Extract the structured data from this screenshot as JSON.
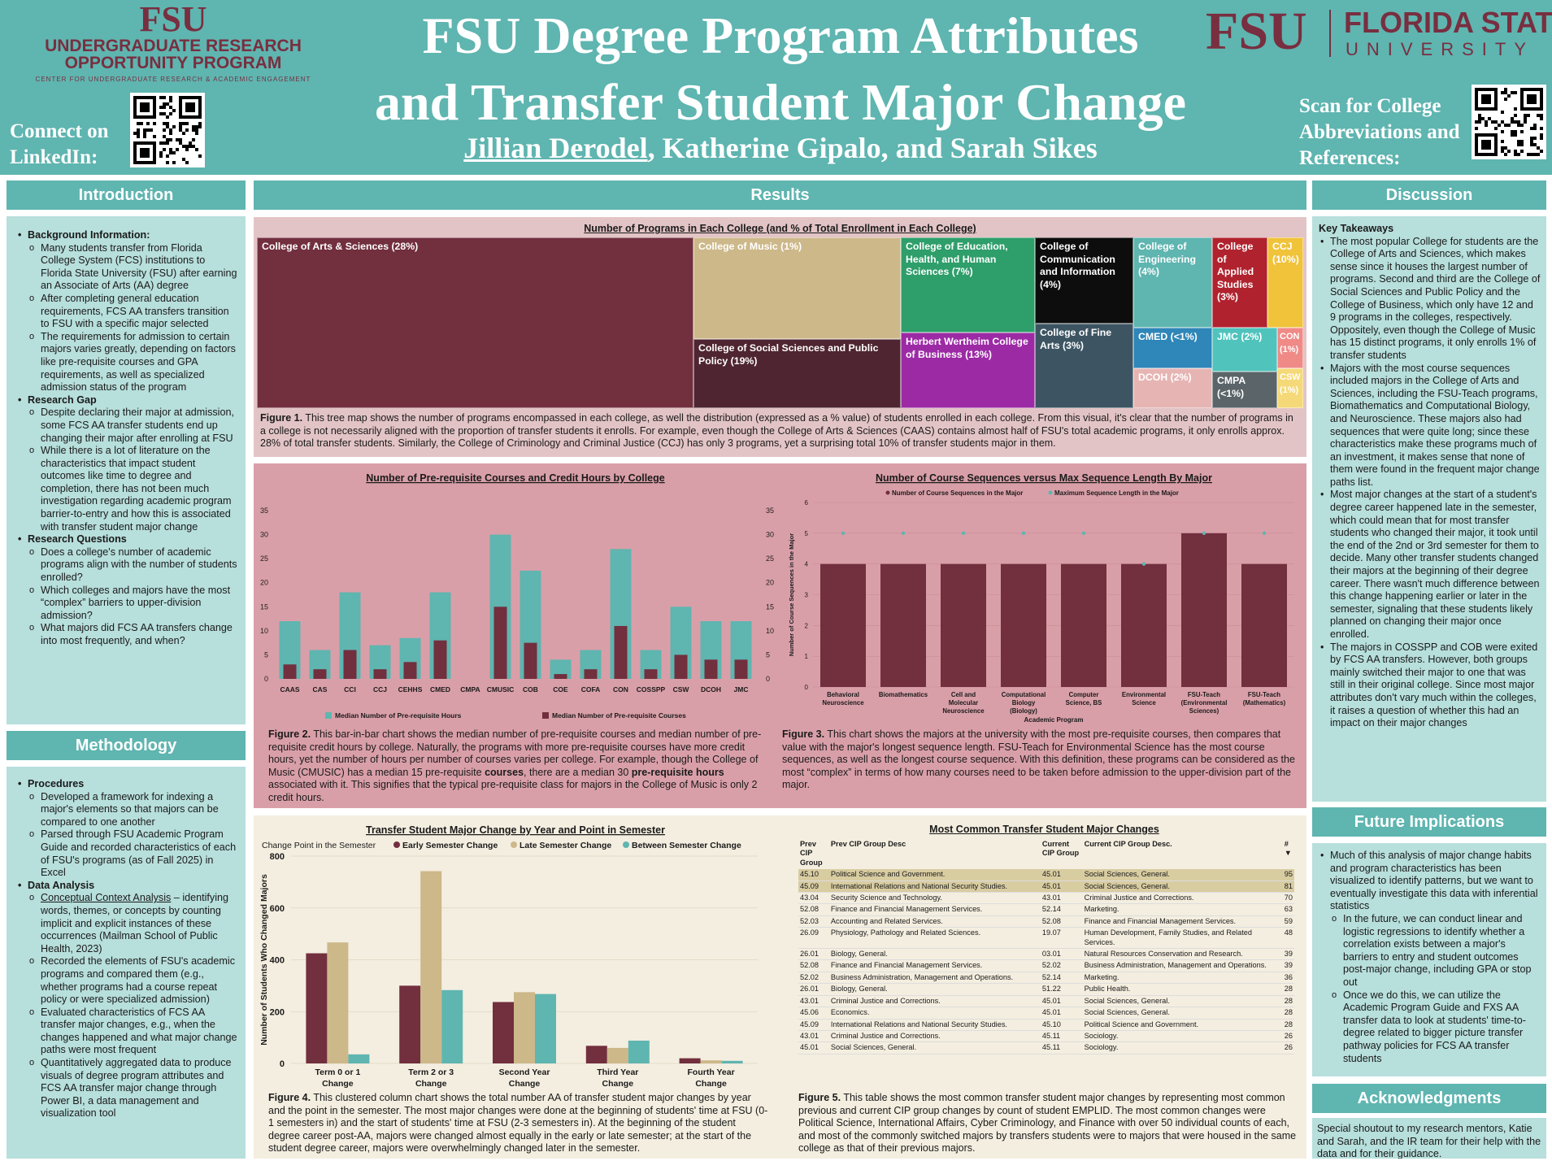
{
  "header": {
    "urop_mark": "FSU",
    "urop_name_1": "UNDERGRADUATE RESEARCH",
    "urop_name_2": "OPPORTUNITY PROGRAM",
    "urop_sub": "CENTER FOR UNDERGRADUATE RESEARCH & ACADEMIC ENGAGEMENT",
    "title_1": "FSU Degree Program Attributes",
    "title_2": "and Transfer Student Major Change",
    "author_1": "Jillian Derodel",
    "author_rest": ", Katherine Gipalo, and Sarah Sikes",
    "fsu_mark": "FSU",
    "fsu_name": "FLORIDA STATE",
    "fsu_univ": "UNIVERSITY",
    "connect": "Connect on LinkedIn:",
    "scan": "Scan for College Abbreviations and References:"
  },
  "sections": {
    "introduction": "Introduction",
    "methodology": "Methodology",
    "results": "Results",
    "discussion": "Discussion",
    "future": "Future Implications",
    "ack": "Acknowledgments"
  },
  "intro": {
    "bg_head": "Background Information:",
    "bg": [
      "Many students transfer from Florida College System (FCS) institutions to Florida State University (FSU) after earning an Associate of Arts (AA) degree",
      "After completing general education requirements, FCS AA transfers transition to FSU with a specific major selected",
      "The requirements for admission to certain majors varies greatly, depending on factors like pre-requisite courses and GPA requirements, as well as specialized admission status of the program"
    ],
    "gap_head": "Research Gap",
    "gap": [
      "Despite declaring their major at admission, some FCS AA transfer students end up changing their major after enrolling at FSU",
      "While there is a lot of literature on the characteristics that impact student outcomes like time to degree and completion, there has not been much investigation regarding academic program barrier-to-entry and how this is associated with transfer student major change"
    ],
    "rq_head": "Research Questions",
    "rq": [
      "Does a college's number of academic programs align with the number of students enrolled?",
      "Which colleges and majors have the most “complex” barriers to upper-division admission?",
      "What majors did FCS AA transfers change into most frequently, and when?"
    ]
  },
  "method": {
    "proc_head": "Procedures",
    "proc": [
      "Developed a framework for indexing a major's elements so that majors can be compared to one another",
      "Parsed through FSU Academic Program Guide and recorded characteristics of each of FSU's programs (as of Fall 2025) in Excel"
    ],
    "da_head": "Data Analysis",
    "cca_term": "Conceptual Context Analysis",
    "cca_rest": " – identifying words, themes, or concepts by counting implicit and explicit instances of these occurrences (Mailman School of Public Health, 2023)",
    "da": [
      "Recorded the elements of FSU's academic programs and compared them (e.g., whether programs had a course repeat policy or were specialized admission)",
      "Evaluated characteristics of FCS AA transfer major changes, e.g., when the changes happened and what major change paths were most frequent",
      "Quantitatively aggregated data to produce visuals of degree program attributes and FCS AA transfer major change through Power BI, a data management and visualization tool"
    ]
  },
  "fig1": {
    "title": "Number of Programs in Each College (and % of Total Enrollment in Each College)",
    "cells": [
      {
        "label": "College of Arts & Sciences (28%)",
        "color": "#722f3e"
      },
      {
        "label": "College of Music (1%)",
        "color": "#cdb88a"
      },
      {
        "label": "College of Social Sciences and Public Policy (19%)",
        "color": "#4e2530"
      },
      {
        "label": "College of Education, Health, and Human Sciences (7%)",
        "color": "#2e9e6a"
      },
      {
        "label": "Herbert Wertheim College of Business (13%)",
        "color": "#9c2aa5"
      },
      {
        "label": "College of Communication and Information (4%)",
        "color": "#0d0d0d"
      },
      {
        "label": "College of Fine Arts (3%)",
        "color": "#3d5563"
      },
      {
        "label": "College of Engineering (4%)",
        "color": "#5fb5b0"
      },
      {
        "label": "College of Applied Studies (3%)",
        "color": "#b0232e"
      },
      {
        "label": "CCJ (10%)",
        "color": "#f0c33a"
      },
      {
        "label": "CMED (<1%)",
        "color": "#2f86b8"
      },
      {
        "label": "JMC (2%)",
        "color": "#4fc3bc"
      },
      {
        "label": "CON (1%)",
        "color": "#ef8a87"
      },
      {
        "label": "DCOH (2%)",
        "color": "#e6b5b3"
      },
      {
        "label": "CMPA (<1%)",
        "color": "#5a6469"
      },
      {
        "label": "CSW (1%)",
        "color": "#f5d978"
      }
    ],
    "caption_lead": "Figure 1.",
    "caption": " This tree map shows the number of programs encompassed in each college, as well the distribution (expressed as a % value) of students enrolled in each college. From this visual, it's clear that the number of programs in a college is not necessarily aligned with the proportion of transfer students it enrolls. For example, even though the College of Arts & Sciences (CAAS) contains almost half of FSU's total academic programs, it only enrolls approx. 28% of total transfer students. Similarly, the College of Criminology and Criminal Justice (CCJ) has only 3 programs, yet a surprising total 10% of transfer students major in them."
  },
  "fig2": {
    "caption_lead": "Figure 2.",
    "caption_a": " This bar-in-bar chart shows the median number of pre-requisite courses and median number of pre-requisite credit hours by college. Naturally, the programs with more pre-requisite courses have more credit hours, yet the number of hours per number of courses varies per college. For example, though the College of Music (CMUSIC) has a median 15 pre-requisite ",
    "caption_b": "courses",
    "caption_c": ", there are a median 30 ",
    "caption_d": "pre-requisite hours",
    "caption_e": " associated with it. This signifies that the typical pre-requisite class for majors in the College of Music is only 2 credit hours."
  },
  "fig3": {
    "caption_lead": "Figure 3.",
    "caption": " This chart shows the majors at the university with the most pre-requisite courses, then compares that value with the major's longest sequence length. FSU-Teach for Environmental Science has the most course sequences, as well as the longest course sequence. With this definition, these programs can be considered as the most “complex” in terms of how many courses need to be taken before admission to the upper-division part of the major."
  },
  "fig4": {
    "caption_lead": "Figure 4.",
    "caption": " This clustered column chart shows the total number AA of transfer student major changes by year and the point in the semester. The most major changes were done at the beginning of students' time at FSU (0-1 semesters in) and the start of students' time at FSU (2-3 semesters in). At the beginning of the student degree career post-AA, majors were changed almost equally in the early or late semester; at the start of the student degree career, majors were overwhelmingly changed later in the semester."
  },
  "fig5": {
    "title": "Most Common Transfer Student Major Changes",
    "headers": [
      "Prev CIP Group",
      "Prev CIP Group Desc",
      "Current CIP Group",
      "Current CIP Group Desc.",
      "#"
    ],
    "rows": [
      [
        "45.10",
        "Political Science and Government.",
        "45.01",
        "Social Sciences, General.",
        "95"
      ],
      [
        "45.09",
        "International Relations and National Security Studies.",
        "45.01",
        "Social Sciences, General.",
        "81"
      ],
      [
        "43.04",
        "Security Science and Technology.",
        "43.01",
        "Criminal Justice and Corrections.",
        "70"
      ],
      [
        "52.08",
        "Finance and Financial Management Services.",
        "52.14",
        "Marketing.",
        "63"
      ],
      [
        "52.03",
        "Accounting and Related Services.",
        "52.08",
        "Finance and Financial Management Services.",
        "59"
      ],
      [
        "26.09",
        "Physiology, Pathology and Related Sciences.",
        "19.07",
        "Human Development, Family Studies, and Related Services.",
        "48"
      ],
      [
        "26.01",
        "Biology, General.",
        "03.01",
        "Natural Resources Conservation and Research.",
        "39"
      ],
      [
        "52.08",
        "Finance and Financial Management Services.",
        "52.02",
        "Business Administration, Management and Operations.",
        "39"
      ],
      [
        "52.02",
        "Business Administration, Management and Operations.",
        "52.14",
        "Marketing.",
        "36"
      ],
      [
        "26.01",
        "Biology, General.",
        "51.22",
        "Public Health.",
        "28"
      ],
      [
        "43.01",
        "Criminal Justice and Corrections.",
        "45.01",
        "Social Sciences, General.",
        "28"
      ],
      [
        "45.06",
        "Economics.",
        "45.01",
        "Social Sciences, General.",
        "28"
      ],
      [
        "45.09",
        "International Relations and National Security Studies.",
        "45.10",
        "Political Science and Government.",
        "28"
      ],
      [
        "43.01",
        "Criminal Justice and Corrections.",
        "45.11",
        "Sociology.",
        "26"
      ],
      [
        "45.01",
        "Social Sciences, General.",
        "45.11",
        "Sociology.",
        "26"
      ]
    ],
    "caption_lead": "Figure 5.",
    "caption": " This table shows the most common transfer student major changes by representing most common previous and current CIP group changes by count of student EMPLID. The most common changes were Political Science, International Affairs, Cyber Criminology, and Finance with over 50 individual counts of each, and most of the commonly switched majors by transfers students were to majors that were housed in the same college as that of their previous majors."
  },
  "discussion": {
    "head": "Key Takeaways",
    "items": [
      "The most popular College for students are the College of Arts and Sciences, which makes sense since it houses the largest number of programs. Second and third are the College of Social Sciences and Public Policy and the College of Business, which only have 12 and 9 programs in the colleges, respectively. Oppositely, even though the College of Music has 15 distinct programs, it only enrolls 1% of transfer students",
      "Majors with the most course sequences included majors in the College of Arts and Sciences, including the FSU-Teach programs, Biomathematics and Computational Biology, and Neuroscience. These majors also had sequences that were quite long; since these characteristics make these programs much of an investment, it makes sense that none of them were found in the frequent major change paths list.",
      "Most major changes at the start of a student's degree career happened late in the semester, which could mean that for most transfer students who changed their major, it took until the end of the 2nd or 3rd semester for them to decide. Many other transfer students changed their majors at the beginning of their degree career. There wasn't much difference between this change happening earlier or later in the semester, signaling that these students likely planned on changing their major once enrolled.",
      "The majors in COSSPP and COB were exited by FCS AA transfers. However, both groups mainly switched their major to one that was still in their original college. Since most major attributes don't vary much within the colleges, it raises a question of whether this had an impact on their major changes"
    ]
  },
  "future": {
    "main": "Much of this analysis of major change habits and program characteristics has been visualized to identify patterns, but we want to eventually investigate this data with inferential statistics",
    "sub": [
      "In the future, we can conduct linear and logistic regressions to identify whether a correlation exists between a major's barriers to entry and student outcomes post-major change, including GPA or stop out",
      "Once we do this, we can utilize the Academic Program Guide and FXS AA transfer data to look at students' time-to-degree related to bigger picture transfer pathway policies for FCS AA transfer students"
    ]
  },
  "ack": {
    "text": "Special shoutout to my research mentors, Katie and Sarah, and the IR team for their help with the data and for their guidance."
  },
  "chart_data": [
    {
      "type": "bar",
      "title": "Number of Pre-requisite Courses and Credit Hours by College",
      "categories": [
        "CAAS",
        "CAS",
        "CCI",
        "CCJ",
        "CEHHS",
        "CMED",
        "CMPA",
        "CMUSIC",
        "COB",
        "COE",
        "COFA",
        "CON",
        "COSSPP",
        "CSW",
        "DCOH",
        "JMC"
      ],
      "series": [
        {
          "name": "Median Number of Pre-requisite Hours",
          "color": "#5fb5b0",
          "values": [
            12,
            6,
            18,
            7,
            8.5,
            18,
            0,
            30,
            22.5,
            4,
            6,
            27,
            6,
            15,
            12,
            12
          ]
        },
        {
          "name": "Median Number of Pre-requisite Courses",
          "color": "#722f3e",
          "values": [
            3,
            2,
            6,
            2,
            3.5,
            8,
            0,
            15,
            7.5,
            1,
            2,
            11,
            2,
            5,
            4,
            4
          ]
        }
      ],
      "ylim": [
        0,
        35
      ],
      "yticks": [
        "0",
        "5",
        "10",
        "15",
        "20",
        "25",
        "30",
        "35"
      ]
    },
    {
      "type": "bar",
      "title": "Number of Course Sequences versus Max Sequence Length By Major",
      "categories": [
        "Behavioral Neuroscience",
        "Biomathematics",
        "Cell and Molecular Neuroscience",
        "Computational Biology (Biology)",
        "Computer Science, BS",
        "Environmental Science",
        "FSU-Teach (Environmental Sciences)",
        "FSU-Teach (Mathematics)"
      ],
      "series": [
        {
          "name": "Number of Course Sequences in the Major",
          "color": "#722f3e",
          "values": [
            4,
            4,
            4,
            4,
            4,
            4,
            5,
            4
          ]
        },
        {
          "name": "Maximum Sequence Length in the Major",
          "color": "#5fb5b0",
          "values": [
            5,
            5,
            5,
            5,
            5,
            4,
            5,
            5
          ]
        }
      ],
      "xlabel": "Academic Program",
      "ylabel": "Number of Course Sequences in the Major",
      "ylim": [
        0,
        6
      ],
      "yticks": [
        "0",
        "1",
        "2",
        "3",
        "4",
        "5",
        "6"
      ]
    },
    {
      "type": "bar",
      "title": "Transfer Student Major Change by Year and Point in Semester",
      "legend_title": "Change Point in the Semester",
      "categories": [
        "Term 0 or 1 Change",
        "Term 2 or 3 Change",
        "Second Year Change",
        "Third Year Change",
        "Fourth Year Change"
      ],
      "series": [
        {
          "name": "Early Semester Change",
          "color": "#722f3e",
          "values": [
            425,
            300,
            237,
            68,
            20
          ]
        },
        {
          "name": "Late Semester Change",
          "color": "#cdb88a",
          "values": [
            467,
            742,
            275,
            60,
            12
          ]
        },
        {
          "name": "Between Semester Change",
          "color": "#5fb5b0",
          "values": [
            35,
            283,
            268,
            88,
            10
          ]
        }
      ],
      "ylabel": "Number of Students Who Changed Majors",
      "ylim": [
        0,
        800
      ],
      "yticks": [
        "0",
        "200",
        "400",
        "600",
        "800"
      ]
    }
  ]
}
